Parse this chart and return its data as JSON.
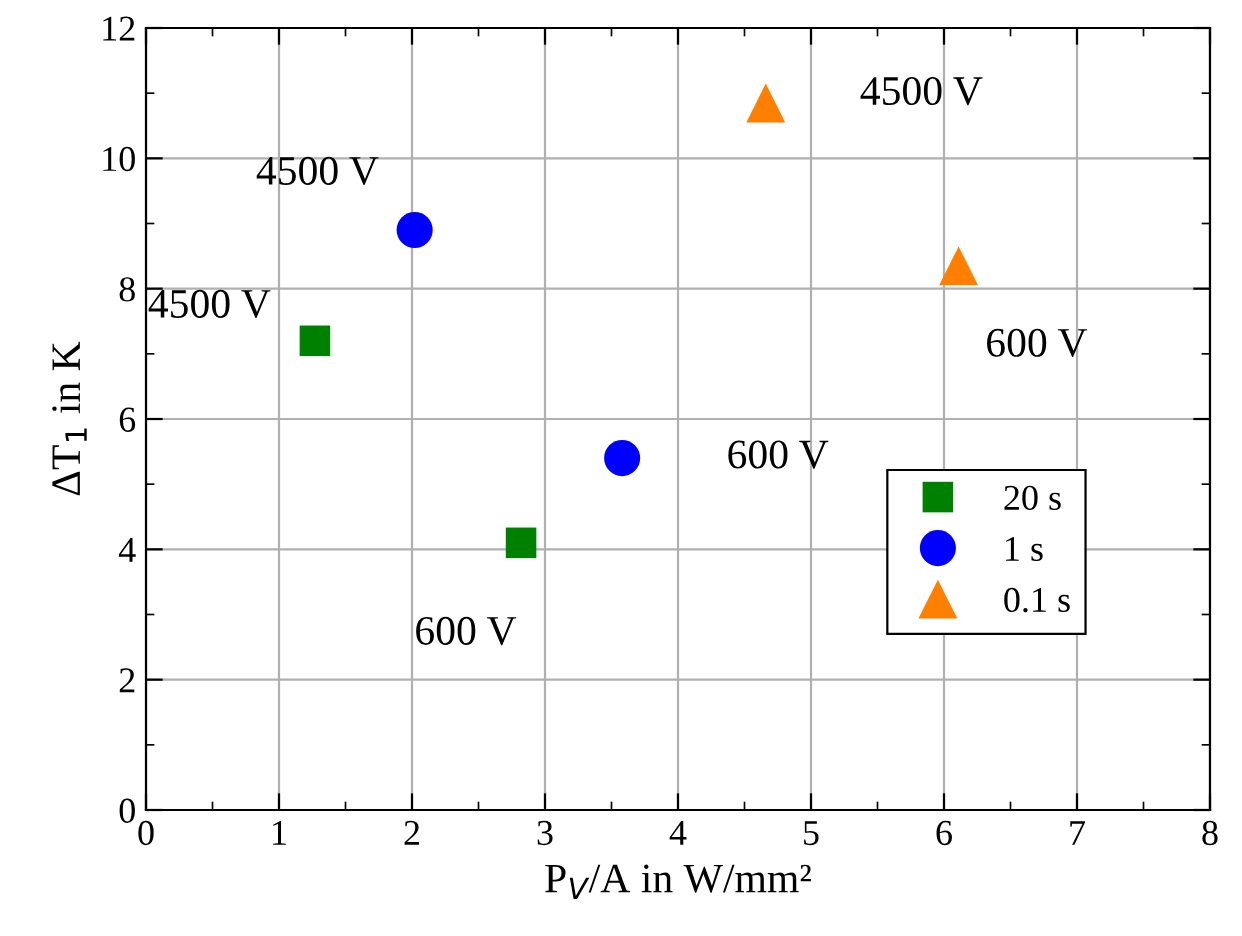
{
  "chart_data": {
    "type": "scatter",
    "xlabel": "P$_{V}$/A in W/mm²",
    "ylabel": "ΔT$_{1}$ in K",
    "xlim": [
      0,
      8
    ],
    "xticks": [
      0,
      1,
      2,
      3,
      4,
      5,
      6,
      7,
      8
    ],
    "ylim": [
      0,
      12
    ],
    "yticks": [
      0,
      2,
      4,
      6,
      8,
      10,
      12
    ],
    "grid": true,
    "legend": "right",
    "series": [
      {
        "name": "20 s",
        "color": "#008000",
        "marker": "square",
        "x": [
          1.27,
          2.82
        ],
        "values": [
          7.2,
          4.1
        ]
      },
      {
        "name": "1 s",
        "color": "#0000ff",
        "marker": "circle",
        "x": [
          2.02,
          3.58
        ],
        "values": [
          8.9,
          5.4
        ]
      },
      {
        "name": "0.1 s",
        "color": "#ff8000",
        "marker": "triangle",
        "x": [
          4.66,
          6.11
        ],
        "values": [
          10.85,
          8.35
        ]
      }
    ],
    "annotations": [
      {
        "text": "4500 V",
        "x": 1.27,
        "y": 7.2
      },
      {
        "text": "600 V",
        "x": 2.82,
        "y": 4.1
      },
      {
        "text": "4500 V",
        "x": 2.02,
        "y": 8.9
      },
      {
        "text": "600 V",
        "x": 3.58,
        "y": 5.4
      },
      {
        "text": "4500 V",
        "x": 4.66,
        "y": 10.85
      },
      {
        "text": "600 V",
        "x": 6.11,
        "y": 8.35
      }
    ]
  }
}
